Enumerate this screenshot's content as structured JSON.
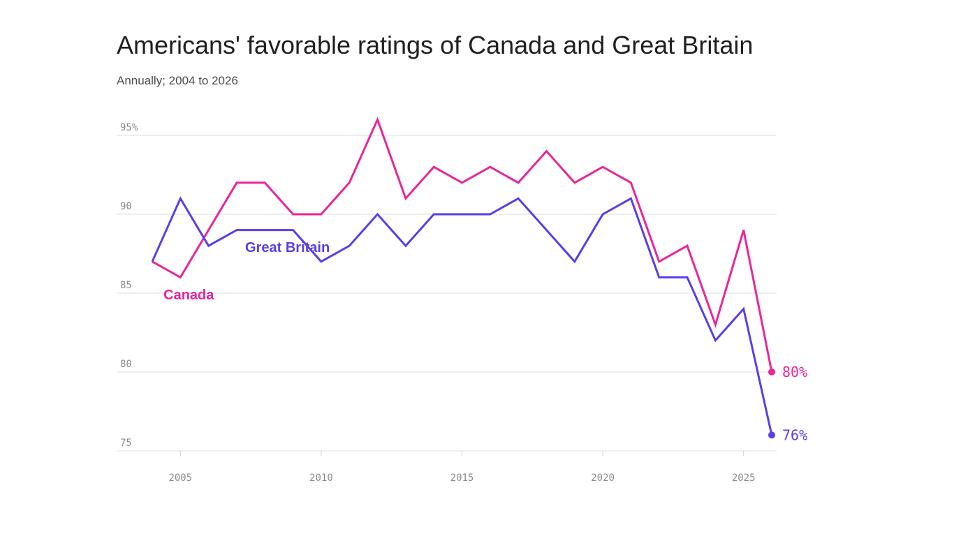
{
  "chart_data": {
    "type": "line",
    "title": "Americans' favorable ratings of Canada and Great Britain",
    "subtitle": "Annually; 2004 to 2026",
    "xlabel": "",
    "ylabel": "",
    "x": [
      2004,
      2005,
      2006,
      2007,
      2008,
      2009,
      2010,
      2011,
      2012,
      2013,
      2014,
      2015,
      2016,
      2017,
      2018,
      2019,
      2020,
      2021,
      2022,
      2023,
      2024,
      2025,
      2026
    ],
    "xlim": [
      2004,
      2026
    ],
    "ylim": [
      75,
      96
    ],
    "x_ticks": [
      2005,
      2010,
      2015,
      2020,
      2025
    ],
    "x_tick_labels": [
      "2005",
      "2010",
      "2015",
      "2020",
      "2025"
    ],
    "y_ticks": [
      75,
      80,
      85,
      90,
      95
    ],
    "y_tick_labels": [
      "75",
      "80",
      "85",
      "90",
      "95%"
    ],
    "grid": "horizontal",
    "series": [
      {
        "name": "Canada",
        "color": "#e8269a",
        "values": [
          87,
          86,
          89,
          92,
          92,
          90,
          90,
          92,
          96,
          91,
          93,
          92,
          93,
          92,
          94,
          92,
          93,
          92,
          87,
          88,
          83,
          89,
          80
        ],
        "end_label": "80%"
      },
      {
        "name": "Great Britain",
        "color": "#5b3ee6",
        "values": [
          87,
          91,
          88,
          89,
          89,
          89,
          87,
          88,
          90,
          88,
          90,
          90,
          90,
          91,
          89,
          87,
          90,
          91,
          86,
          86,
          82,
          84,
          76
        ],
        "end_label": "76%"
      }
    ]
  }
}
